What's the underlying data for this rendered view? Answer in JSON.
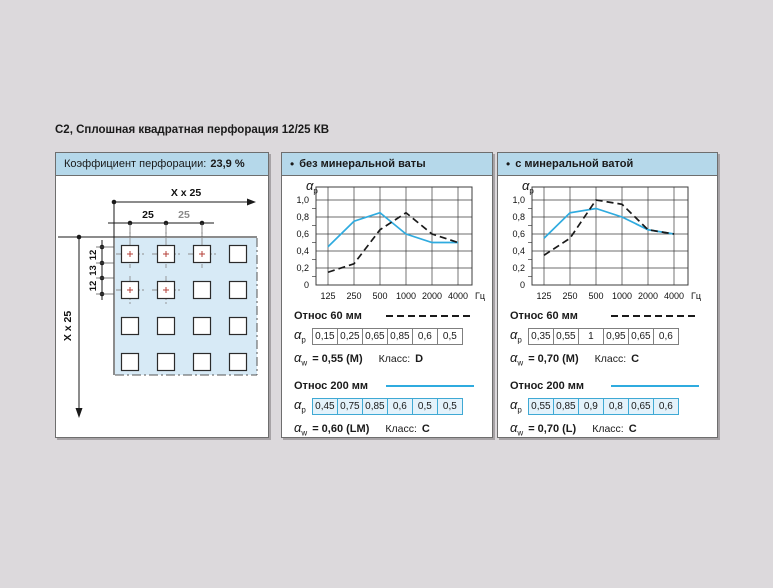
{
  "page_title": "C2, Сплошная квадратная перфорация 12/25 КВ",
  "labels": {
    "bullet": "•",
    "class_label": "Класс:",
    "alpha": "α",
    "sub_p": "p",
    "sub_w": "w"
  },
  "left_panel": {
    "header_label": "Коэффициент перфорации:",
    "header_value": "23,9 %",
    "drawing": {
      "dim_top": "X x 25",
      "dim_25_1": "25",
      "dim_25_2": "25",
      "dim_12_1": "12",
      "dim_13": "13",
      "dim_12_2": "12",
      "dim_left": "X x 25"
    }
  },
  "colors": {
    "accent_cyan": "#2fabdf",
    "header_blue": "#b5d8ea",
    "page_bg": "#dcd9dc",
    "drawing_fill": "#d7eaf6"
  },
  "chart_data": [
    {
      "type": "line",
      "title": "без минеральной ваты",
      "y_axis_symbol": "αp",
      "x_unit": "Гц",
      "grid": true,
      "ylim": [
        0,
        1.1
      ],
      "categories": [
        125,
        250,
        500,
        1000,
        2000,
        4000
      ],
      "x_ticklabels": [
        "125",
        "250",
        "500",
        "1000",
        "2000",
        "4000"
      ],
      "y_ticklabels": [
        "0",
        "0,2",
        "0,4",
        "0,6",
        "0,8",
        "1,0"
      ],
      "series": [
        {
          "name": "Относ 60 мм",
          "style": "dashed",
          "color": "#1a1a1a",
          "values": [
            0.15,
            0.25,
            0.65,
            0.85,
            0.6,
            0.5
          ],
          "values_display": [
            "0,15",
            "0,25",
            "0,65",
            "0,85",
            "0,6",
            "0,5"
          ],
          "alpha_w": "= 0,55 (M)",
          "class": "D"
        },
        {
          "name": "Относ 200 мм",
          "style": "solid",
          "color": "#2fabdf",
          "values": [
            0.45,
            0.75,
            0.85,
            0.6,
            0.5,
            0.5
          ],
          "values_display": [
            "0,45",
            "0,75",
            "0,85",
            "0,6",
            "0,5",
            "0,5"
          ],
          "alpha_w": "= 0,60 (LM)",
          "class": "C"
        }
      ]
    },
    {
      "type": "line",
      "title": "с минеральной ватой",
      "y_axis_symbol": "αp",
      "x_unit": "Гц",
      "grid": true,
      "ylim": [
        0,
        1.1
      ],
      "categories": [
        125,
        250,
        500,
        1000,
        2000,
        4000
      ],
      "x_ticklabels": [
        "125",
        "250",
        "500",
        "1000",
        "2000",
        "4000"
      ],
      "y_ticklabels": [
        "0",
        "0,2",
        "0,4",
        "0,6",
        "0,8",
        "1,0"
      ],
      "series": [
        {
          "name": "Относ 60 мм",
          "style": "dashed",
          "color": "#1a1a1a",
          "values": [
            0.35,
            0.55,
            1,
            0.95,
            0.65,
            0.6
          ],
          "values_display": [
            "0,35",
            "0,55",
            "1",
            "0,95",
            "0,65",
            "0,6"
          ],
          "alpha_w": "= 0,70 (M)",
          "class": "C"
        },
        {
          "name": "Относ 200 мм",
          "style": "solid",
          "color": "#2fabdf",
          "values": [
            0.55,
            0.85,
            0.9,
            0.8,
            0.65,
            0.6
          ],
          "values_display": [
            "0,55",
            "0,85",
            "0,9",
            "0,8",
            "0,65",
            "0,6"
          ],
          "alpha_w": "= 0,70 (L)",
          "class": "C"
        }
      ]
    }
  ]
}
